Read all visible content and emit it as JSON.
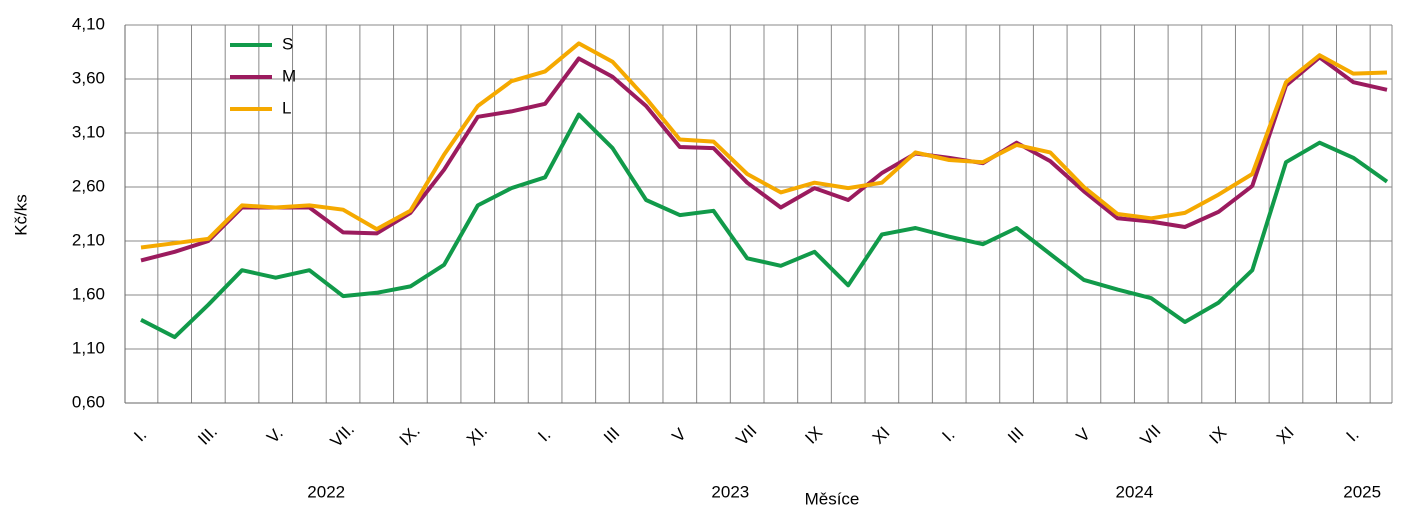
{
  "chart_data": {
    "type": "line",
    "ylabel": "Kč/ks",
    "xlabel": "Měsíce",
    "categories": [
      "I.",
      null,
      "III.",
      null,
      "V.",
      null,
      "VII.",
      null,
      "IX.",
      null,
      "XI.",
      null,
      "I.",
      null,
      "III",
      null,
      "V",
      null,
      "VII",
      null,
      "IX",
      null,
      "XI",
      null,
      "I.",
      null,
      "III",
      null,
      "V",
      null,
      "VII",
      null,
      "IX",
      null,
      "XI",
      null,
      "I.",
      null
    ],
    "years": [
      "2022",
      "2023",
      "2024",
      "2025"
    ],
    "series": [
      {
        "name": "S",
        "color": "#119a4a",
        "values": [
          1.37,
          1.21,
          1.51,
          1.83,
          1.76,
          1.83,
          1.59,
          1.62,
          1.68,
          1.88,
          2.43,
          2.59,
          2.69,
          3.27,
          2.96,
          2.48,
          2.34,
          2.38,
          1.94,
          1.87,
          2.0,
          1.69,
          2.16,
          2.22,
          2.14,
          2.07,
          2.22,
          1.98,
          1.74,
          1.65,
          1.57,
          1.35,
          1.53,
          1.83,
          2.83,
          3.01,
          2.87,
          2.65
        ]
      },
      {
        "name": "M",
        "color": "#9b1b5e",
        "values": [
          1.92,
          2.0,
          2.1,
          2.41,
          2.41,
          2.41,
          2.18,
          2.17,
          2.36,
          2.76,
          3.25,
          3.3,
          3.37,
          3.79,
          3.62,
          3.35,
          2.97,
          2.96,
          2.64,
          2.41,
          2.59,
          2.48,
          2.73,
          2.91,
          2.87,
          2.82,
          3.01,
          2.84,
          2.56,
          2.31,
          2.28,
          2.23,
          2.37,
          2.61,
          3.54,
          3.8,
          3.57,
          3.5
        ]
      },
      {
        "name": "L",
        "color": "#f5a900",
        "values": [
          2.04,
          2.08,
          2.12,
          2.43,
          2.41,
          2.43,
          2.39,
          2.21,
          2.38,
          2.9,
          3.35,
          3.58,
          3.67,
          3.93,
          3.76,
          3.42,
          3.04,
          3.02,
          2.72,
          2.55,
          2.64,
          2.59,
          2.64,
          2.92,
          2.85,
          2.83,
          2.99,
          2.92,
          2.6,
          2.35,
          2.31,
          2.36,
          2.53,
          2.72,
          3.57,
          3.82,
          3.65,
          3.66
        ]
      }
    ],
    "ylim": [
      0.6,
      4.1
    ],
    "yticks": [
      {
        "value": 0.6,
        "label": "0,60"
      },
      {
        "value": 1.1,
        "label": "1,10"
      },
      {
        "value": 1.6,
        "label": "1,60"
      },
      {
        "value": 2.1,
        "label": "2,10"
      },
      {
        "value": 2.6,
        "label": "2,60"
      },
      {
        "value": 3.1,
        "label": "3,10"
      },
      {
        "value": 3.6,
        "label": "3,60"
      },
      {
        "value": 4.1,
        "label": "4,10"
      }
    ],
    "grid": true,
    "legend": "upper left"
  }
}
